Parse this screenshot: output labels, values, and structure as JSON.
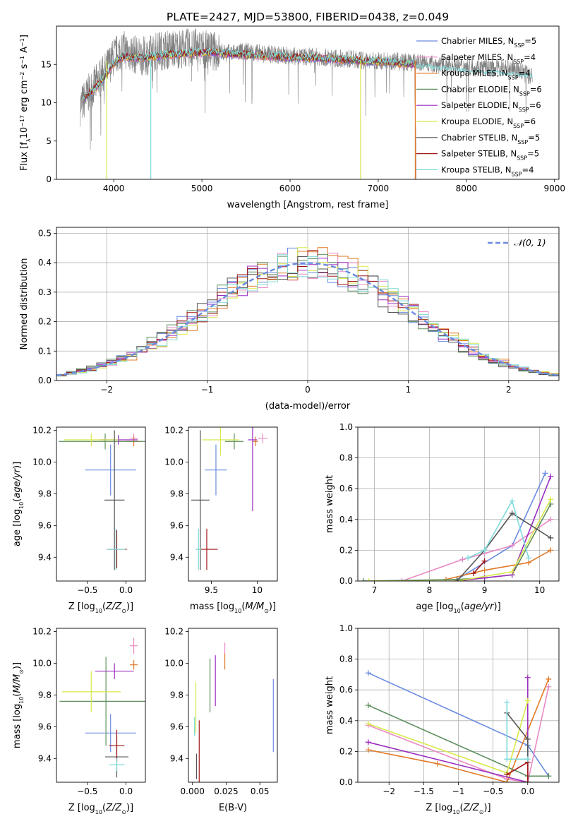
{
  "figure": {
    "title": "PLATE=2427, MJD=53800, FIBERID=0438, z=0.049"
  },
  "colors": {
    "models": [
      "#6a8be0",
      "#e98ac4",
      "#e07a2a",
      "#5e8f5e",
      "#9b2fbf",
      "#d8e84a",
      "#555555",
      "#a01818",
      "#7fdada"
    ],
    "data_spectrum": "#808080",
    "normal_curve": "#6a8be0"
  },
  "models": [
    {
      "name": "Chabrier MILES",
      "nssp": "5"
    },
    {
      "name": "Salpeter MILES",
      "nssp": "4"
    },
    {
      "name": "Kroupa MILES",
      "nssp": "4"
    },
    {
      "name": "Chabrier ELODIE",
      "nssp": "6"
    },
    {
      "name": "Salpeter ELODIE",
      "nssp": "6"
    },
    {
      "name": "Kroupa ELODIE",
      "nssp": "6"
    },
    {
      "name": "Chabrier STELIB",
      "nssp": "5"
    },
    {
      "name": "Salpeter STELIB",
      "nssp": "5"
    },
    {
      "name": "Kroupa STELIB",
      "nssp": "4"
    }
  ],
  "chart_data": [
    {
      "id": "spectrum",
      "type": "line",
      "xlabel": "wavelength [Angstrom, rest frame]",
      "ylabel": "Flux [f_λ10^-17 erg cm^-2 s^-1 A^-1]",
      "xlim": [
        3350,
        9050
      ],
      "ylim": [
        0,
        20
      ],
      "xticks": [
        4000,
        5000,
        6000,
        7000,
        8000,
        9000
      ],
      "yticks": [
        0,
        5,
        10,
        15
      ],
      "grid": false,
      "legend_position": "top-right",
      "data_x": [
        3620,
        3700,
        3800,
        3900,
        4000,
        4100,
        4200,
        4300,
        4400,
        4500,
        4700,
        4900,
        5100,
        5300,
        5500,
        5700,
        5900,
        6100,
        6300,
        6500,
        6700,
        6900,
        7100,
        7300,
        7500,
        7700,
        7900,
        8100,
        8300,
        8500,
        8750
      ],
      "data_y": [
        9.5,
        11,
        12.5,
        14,
        16,
        17,
        16.5,
        16,
        16.2,
        16.8,
        17,
        17.2,
        16.8,
        16.5,
        16.7,
        16.4,
        16.2,
        16,
        16,
        15.8,
        15.7,
        15.4,
        15.5,
        15.3,
        15.2,
        14.9,
        14.8,
        14.6,
        14.5,
        14.6,
        13.4
      ],
      "model_x": [
        3650,
        3800,
        3900,
        4000,
        4100,
        4300,
        4500,
        4800,
        5100,
        5400,
        5700,
        6000,
        6300,
        6600,
        6900,
        7200,
        7400
      ],
      "model_y": [
        10.5,
        12,
        13.5,
        15.2,
        16,
        15.8,
        16.1,
        16.4,
        16.6,
        16.3,
        16.1,
        15.9,
        15.8,
        15.6,
        15.4,
        15.2,
        15.0
      ],
      "model_end_x": [
        7420,
        7420,
        7420,
        7420,
        7420,
        7420,
        7420,
        7420,
        8750
      ],
      "drops_x": [
        {
          "model": 5,
          "x": 3920
        },
        {
          "model": 8,
          "x": 4420
        },
        {
          "model": 5,
          "x": 6800
        },
        {
          "model": 2,
          "x": 7420
        }
      ]
    },
    {
      "id": "residuals",
      "type": "histogram",
      "xlabel": "(data-model)/error",
      "ylabel": "Normed distribution",
      "xlim": [
        -2.5,
        2.5
      ],
      "ylim": [
        0,
        0.52
      ],
      "xticks": [
        -2,
        -1,
        0,
        1,
        2
      ],
      "yticks": [
        0.0,
        0.1,
        0.2,
        0.3,
        0.4,
        0.5
      ],
      "grid": true,
      "legend_position": "top-right",
      "normal_label": "𝒩(0, 1)",
      "bin_width": 0.1
    },
    {
      "id": "age_vs_Z",
      "type": "scatter",
      "xlabel": "Z [log10(Z/Z⊙)]",
      "ylabel": "age [log10(age/yr)]",
      "xlim": [
        -0.9,
        0.25
      ],
      "ylim": [
        9.25,
        10.22
      ],
      "xticks": [
        -0.5,
        0.0
      ],
      "yticks": [
        9.4,
        9.6,
        9.8,
        10.0,
        10.2
      ],
      "grid": false,
      "points": [
        {
          "model": 0,
          "x": -0.2,
          "xerr": 0.33,
          "y": 9.95,
          "yerr": 0.16
        },
        {
          "model": 1,
          "x": 0.1,
          "xerr": 0.05,
          "y": 10.15,
          "yerr": 0.03
        },
        {
          "model": 2,
          "x": 0.1,
          "xerr": 0.1,
          "y": 10.13,
          "yerr": 0.03
        },
        {
          "model": 3,
          "x": -0.27,
          "xerr": 0.6,
          "y": 10.13,
          "yerr": 0.05
        },
        {
          "model": 4,
          "x": -0.1,
          "xerr": 0.25,
          "y": 10.14,
          "yerr": 0.03
        },
        {
          "model": 5,
          "x": -0.45,
          "xerr": 0.35,
          "y": 10.14,
          "yerr": 0.04
        },
        {
          "model": 6,
          "x": -0.15,
          "xerr": 0.13,
          "y": 9.76,
          "yerr": 0.44
        },
        {
          "model": 7,
          "x": -0.12,
          "xerr": 0.13,
          "y": 9.45,
          "yerr": 0.12
        },
        {
          "model": 8,
          "x": -0.13,
          "xerr": 0.12,
          "y": 9.45,
          "yerr": 0.13
        }
      ]
    },
    {
      "id": "age_vs_mass",
      "type": "scatter",
      "xlabel": "mass [log10(M/M⊙)]",
      "ylabel": "",
      "xlim": [
        9.25,
        10.22
      ],
      "ylim": [
        9.25,
        10.22
      ],
      "xticks": [
        9.5,
        10.0
      ],
      "yticks": [
        9.4,
        9.6,
        9.8,
        10.0,
        10.2
      ],
      "grid": false,
      "points": [
        {
          "model": 0,
          "x": 9.55,
          "xerr": 0.12,
          "y": 9.95,
          "yerr": 0.16
        },
        {
          "model": 1,
          "x": 10.06,
          "xerr": 0.05,
          "y": 10.15,
          "yerr": 0.03
        },
        {
          "model": 2,
          "x": 9.98,
          "xerr": 0.03,
          "y": 10.13,
          "yerr": 0.03
        },
        {
          "model": 3,
          "x": 9.75,
          "xerr": 0.1,
          "y": 10.13,
          "yerr": 0.05
        },
        {
          "model": 4,
          "x": 9.95,
          "xerr": 0.05,
          "y": 10.14,
          "yerr": 0.45
        },
        {
          "model": 5,
          "x": 9.6,
          "xerr": 0.2,
          "y": 10.14,
          "yerr": 0.1
        },
        {
          "model": 6,
          "x": 9.38,
          "xerr": 0.1,
          "y": 9.76,
          "yerr": 0.44
        },
        {
          "model": 7,
          "x": 9.45,
          "xerr": 0.12,
          "y": 9.45,
          "yerr": 0.13
        },
        {
          "model": 8,
          "x": 9.36,
          "xerr": 0.03,
          "y": 9.45,
          "yerr": 0.13
        }
      ]
    },
    {
      "id": "weight_vs_age",
      "type": "line",
      "xlabel": "age [log10(age/yr)]",
      "ylabel": "mass weight",
      "xlim": [
        6.7,
        10.35
      ],
      "ylim": [
        0,
        1.0
      ],
      "xticks": [
        7,
        8,
        9,
        10
      ],
      "yticks": [
        0.0,
        0.2,
        0.4,
        0.6,
        0.8,
        1.0
      ],
      "grid": true,
      "series": [
        {
          "model": 0,
          "x": [
            8.5,
            9.5,
            10.1
          ],
          "y": [
            0.01,
            0.23,
            0.7
          ]
        },
        {
          "model": 1,
          "x": [
            7.5,
            8.6,
            9.0,
            9.5,
            10.2
          ],
          "y": [
            0.0,
            0.14,
            0.18,
            0.23,
            0.4
          ]
        },
        {
          "model": 2,
          "x": [
            8.3,
            9.0,
            9.8,
            10.2
          ],
          "y": [
            0.01,
            0.07,
            0.12,
            0.2
          ]
        },
        {
          "model": 3,
          "x": [
            6.8,
            8.5,
            9.0,
            9.5,
            10.2
          ],
          "y": [
            0.0,
            0.01,
            0.02,
            0.04,
            0.5
          ]
        },
        {
          "model": 4,
          "x": [
            8.5,
            9.0,
            9.5,
            10.2
          ],
          "y": [
            0.0,
            0.02,
            0.04,
            0.68
          ]
        },
        {
          "model": 5,
          "x": [
            6.9,
            8.5,
            9.5,
            10.2
          ],
          "y": [
            0.0,
            0.0,
            0.06,
            0.53
          ]
        },
        {
          "model": 6,
          "x": [
            8.5,
            9.0,
            9.5,
            10.2
          ],
          "y": [
            0.0,
            0.2,
            0.44,
            0.28
          ]
        },
        {
          "model": 7,
          "x": [
            8.8,
            9.0
          ],
          "y": [
            0.05,
            0.13
          ]
        },
        {
          "model": 8,
          "x": [
            8.7,
            9.0,
            9.5,
            9.8
          ],
          "y": [
            0.15,
            0.2,
            0.52,
            0.15
          ]
        }
      ]
    },
    {
      "id": "mass_vs_Z",
      "type": "scatter",
      "xlabel": "Z [log10(Z/Z⊙)]",
      "ylabel": "mass [log10(M/M⊙)]",
      "xlim": [
        -0.9,
        0.25
      ],
      "ylim": [
        9.25,
        10.22
      ],
      "xticks": [
        -0.5,
        0.0
      ],
      "yticks": [
        9.4,
        9.6,
        9.8,
        10.0,
        10.2
      ],
      "grid": false,
      "points": [
        {
          "model": 0,
          "x": -0.2,
          "xerr": 0.33,
          "y": 9.56,
          "yerr": 0.12
        },
        {
          "model": 1,
          "x": 0.1,
          "xerr": 0.05,
          "y": 10.11,
          "yerr": 0.05
        },
        {
          "model": 2,
          "x": 0.1,
          "xerr": 0.05,
          "y": 9.99,
          "yerr": 0.03
        },
        {
          "model": 3,
          "x": -0.26,
          "xerr": 0.6,
          "y": 9.76,
          "yerr": 0.28
        },
        {
          "model": 4,
          "x": -0.15,
          "xerr": 0.25,
          "y": 9.95,
          "yerr": 0.05
        },
        {
          "model": 5,
          "x": -0.45,
          "xerr": 0.38,
          "y": 9.82,
          "yerr": 0.13
        },
        {
          "model": 6,
          "x": -0.12,
          "xerr": 0.15,
          "y": 9.41,
          "yerr": 0.13
        },
        {
          "model": 7,
          "x": -0.12,
          "xerr": 0.1,
          "y": 9.48,
          "yerr": 0.1
        },
        {
          "model": 8,
          "x": -0.12,
          "xerr": 0.1,
          "y": 9.36,
          "yerr": 0.04
        }
      ]
    },
    {
      "id": "mass_vs_ebv",
      "type": "scatter",
      "xlabel": "E(B-V)",
      "ylabel": "",
      "xlim": [
        -0.003,
        0.063
      ],
      "ylim": [
        9.25,
        10.22
      ],
      "xticks": [
        0.0,
        0.025,
        0.05
      ],
      "yticks": [
        9.4,
        9.6,
        9.8,
        10.0,
        10.2
      ],
      "grid": false,
      "points": [
        {
          "model": 0,
          "x": 0.06,
          "xerr": 0,
          "y": 9.67,
          "yerr": 0.23
        },
        {
          "model": 1,
          "x": 0.024,
          "xerr": 0,
          "y": 10.09,
          "yerr": 0.04
        },
        {
          "model": 2,
          "x": 0.024,
          "xerr": 0,
          "y": 10.01,
          "yerr": 0.05
        },
        {
          "model": 3,
          "x": 0.013,
          "xerr": 0,
          "y": 9.86,
          "yerr": 0.17
        },
        {
          "model": 4,
          "x": 0.017,
          "xerr": 0,
          "y": 9.89,
          "yerr": 0.16
        },
        {
          "model": 5,
          "x": 0.0025,
          "xerr": 0,
          "y": 9.72,
          "yerr": 0.16
        },
        {
          "model": 6,
          "x": 0.003,
          "xerr": 0,
          "y": 9.35,
          "yerr": 0.08
        },
        {
          "model": 7,
          "x": 0.005,
          "xerr": 0,
          "y": 9.44,
          "yerr": 0.2
        },
        {
          "model": 8,
          "x": 0.0015,
          "xerr": 0,
          "y": 9.6,
          "yerr": 0.06
        }
      ]
    },
    {
      "id": "weight_vs_Z",
      "type": "line",
      "xlabel": "Z [log10(Z/Z⊙)]",
      "ylabel": "mass weight",
      "xlim": [
        -2.45,
        0.45
      ],
      "ylim": [
        0,
        1.0
      ],
      "xticks": [
        -2.0,
        -1.5,
        -1.0,
        -0.5,
        0.0
      ],
      "yticks": [
        0.0,
        0.2,
        0.4,
        0.6,
        0.8,
        1.0
      ],
      "grid": true,
      "series": [
        {
          "model": 0,
          "x": [
            -2.3,
            0.0,
            0.3
          ],
          "y": [
            0.71,
            0.24,
            0.04
          ]
        },
        {
          "model": 1,
          "x": [
            -2.3,
            -0.3,
            0.0,
            0.3
          ],
          "y": [
            0.37,
            0.02,
            0.0,
            0.62
          ]
        },
        {
          "model": 2,
          "x": [
            -2.3,
            -1.3,
            -0.3,
            0.3
          ],
          "y": [
            0.21,
            0.12,
            0.0,
            0.67
          ]
        },
        {
          "model": 3,
          "x": [
            -2.3,
            0.0,
            0.3
          ],
          "y": [
            0.5,
            0.04,
            0.04
          ]
        },
        {
          "model": 4,
          "x": [
            -2.3,
            0.0,
            0.0
          ],
          "y": [
            0.26,
            0.0,
            0.68
          ]
        },
        {
          "model": 5,
          "x": [
            -2.3,
            -0.3,
            0.0
          ],
          "y": [
            0.38,
            0.06,
            0.53
          ]
        },
        {
          "model": 6,
          "x": [
            -0.3,
            0.0,
            0.0
          ],
          "y": [
            0.45,
            0.28,
            0.0
          ]
        },
        {
          "model": 7,
          "x": [
            -0.3,
            0.0,
            0.0
          ],
          "y": [
            0.05,
            0.13,
            0.0
          ]
        },
        {
          "model": 8,
          "x": [
            -0.3,
            -0.3,
            0.0
          ],
          "y": [
            0.52,
            0.15,
            0.15
          ]
        }
      ]
    }
  ]
}
